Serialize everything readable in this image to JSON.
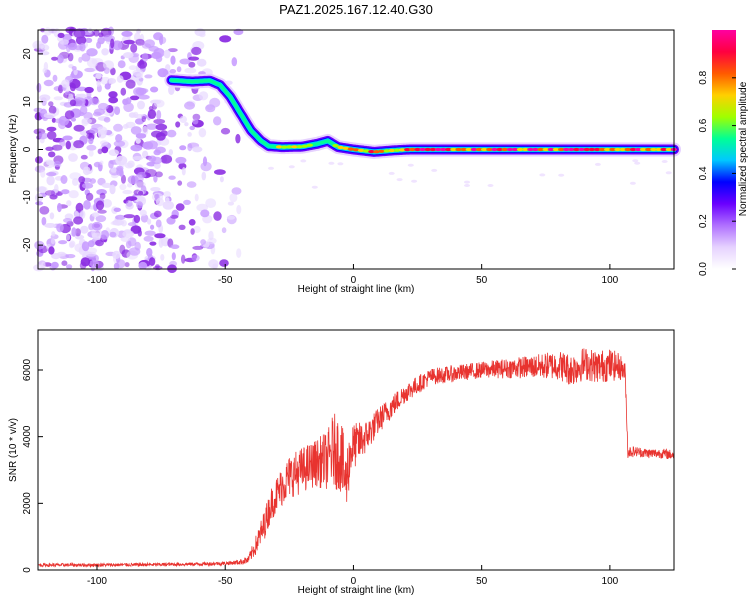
{
  "title": "PAZ1.2025.167.12.40.G30",
  "colors": {
    "snr_line": "#e8332f",
    "axis": "#000000",
    "colormap": [
      "#ffffff",
      "#e6d2ff",
      "#b070ff",
      "#6a00ff",
      "#0000ff",
      "#00c8ff",
      "#00ff96",
      "#a0ff00",
      "#ffd000",
      "#ff5a00",
      "#ff0040",
      "#ff00a0"
    ]
  },
  "chart_data": [
    {
      "type": "heatmap",
      "name_hint": "spectrogram",
      "xlabel": "Height of straight line (km)",
      "ylabel": "Frequency (Hz)",
      "xlim": [
        -123,
        125
      ],
      "ylim": [
        -25,
        25
      ],
      "x_ticks": [
        "-100",
        "-50",
        "0",
        "50",
        "100"
      ],
      "x_tick_values": [
        -100,
        -50,
        0,
        50,
        100
      ],
      "y_ticks": [
        "-20",
        "-10",
        "0",
        "10",
        "20"
      ],
      "y_tick_values": [
        -20,
        -10,
        0,
        10,
        20
      ],
      "ridge": {
        "x": [
          -71,
          -63,
          -56,
          -52,
          -48,
          -44,
          -40,
          -36,
          -33,
          -28,
          -20,
          -14,
          -10,
          -6,
          0,
          8,
          15,
          22,
          30,
          50,
          75,
          100,
          125
        ],
        "y": [
          14.5,
          14.2,
          14.4,
          13.5,
          11,
          7.5,
          4,
          1.8,
          0.7,
          0.5,
          0.6,
          1.2,
          1.8,
          0.5,
          0,
          -0.5,
          -0.2,
          0,
          0,
          0,
          0,
          0,
          0
        ],
        "peak_amplitude": [
          0.3,
          0.3,
          0.35,
          0.3,
          0.25,
          0.3,
          0.35,
          0.4,
          0.5,
          0.7,
          0.75,
          0.55,
          0.45,
          0.8,
          0.9,
          0.85,
          0.75,
          0.85,
          0.95,
          0.95,
          0.95,
          0.95,
          0.95
        ]
      },
      "noise_region_x": [
        -123,
        -44
      ],
      "colorbar": {
        "label": "Normalized spectral amplitude",
        "range": [
          0,
          1
        ],
        "ticks": [
          "0.0",
          "0.2",
          "0.4",
          "0.6",
          "0.8"
        ],
        "tick_values": [
          0,
          0.2,
          0.4,
          0.6,
          0.8
        ]
      }
    },
    {
      "type": "line",
      "name_hint": "snr",
      "xlabel": "Height of straight line (km)",
      "ylabel": "SNR (10 * v/v)",
      "xlim": [
        -123,
        125
      ],
      "ylim": [
        0,
        7200
      ],
      "x_ticks": [
        "-100",
        "-50",
        "0",
        "50",
        "100"
      ],
      "x_tick_values": [
        -100,
        -50,
        0,
        50,
        100
      ],
      "y_ticks": [
        "0",
        "2000",
        "4000",
        "6000"
      ],
      "y_tick_values": [
        0,
        2000,
        4000,
        6000
      ],
      "series": [
        {
          "x": [
            -123,
            -100,
            -80,
            -60,
            -50,
            -45,
            -41,
            -38,
            -35,
            -32,
            -28,
            -25,
            -20,
            -15,
            -10,
            -8,
            -5,
            -3,
            -1,
            0,
            5,
            10,
            20,
            30,
            40,
            50,
            60,
            70,
            80,
            85,
            90,
            95,
            100,
            104,
            106,
            107,
            110,
            115,
            120,
            125
          ],
          "y": [
            150,
            150,
            160,
            180,
            200,
            230,
            300,
            750,
            1300,
            2000,
            2500,
            2800,
            3000,
            3200,
            3300,
            3600,
            3500,
            2600,
            3600,
            3700,
            4000,
            4500,
            5300,
            5800,
            5900,
            6000,
            6050,
            6100,
            6150,
            6000,
            6200,
            6100,
            6150,
            6100,
            5900,
            3550,
            3550,
            3500,
            3500,
            3450
          ],
          "noise": [
            50,
            50,
            50,
            50,
            60,
            70,
            120,
            300,
            450,
            500,
            600,
            650,
            700,
            700,
            900,
            1100,
            1200,
            1000,
            800,
            700,
            500,
            400,
            300,
            250,
            250,
            250,
            300,
            350,
            450,
            500,
            500,
            500,
            500,
            400,
            300,
            200,
            150,
            150,
            150,
            150
          ]
        }
      ]
    }
  ]
}
